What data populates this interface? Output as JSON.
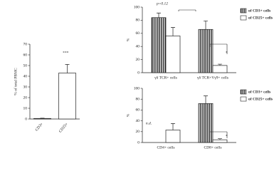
{
  "chart_data": [
    {
      "type": "bar",
      "ylabel": "% of total PBMC",
      "categories": [
        "CD3+",
        "CD25+"
      ],
      "series": [
        {
          "values": [
            0.5,
            43
          ],
          "errors": [
            0.3,
            8
          ],
          "color": "#ffffff"
        }
      ],
      "ylim": [
        0,
        70
      ],
      "yticks": [
        0,
        10,
        20,
        30,
        40,
        50,
        60,
        70
      ],
      "annotations": [
        "***"
      ]
    },
    {
      "type": "bar",
      "ylabel": "%",
      "categories": [
        "γδ TCR+ cells",
        "γδ TCR+Vγ9+ cells"
      ],
      "series": [
        {
          "name": "of CD3+ cells",
          "values": [
            84,
            66
          ],
          "errors": [
            7,
            13
          ],
          "color": "#ffffff",
          "hatch": "vertical"
        },
        {
          "name": "of CD25+ cells",
          "values": [
            56,
            11
          ],
          "errors": [
            13,
            2
          ],
          "color": "#ffffff"
        }
      ],
      "ylim": [
        0,
        100
      ],
      "yticks": [
        0,
        20,
        40,
        60,
        80,
        100
      ],
      "annotations": [
        "p=0.12",
        "*"
      ],
      "legend": "right"
    },
    {
      "type": "bar",
      "ylabel": "%",
      "categories": [
        "CD4+ cells",
        "CD8+ cells"
      ],
      "series": [
        {
          "name": "of CD3+ cells",
          "values": [
            null,
            72
          ],
          "errors": [
            null,
            14
          ],
          "color": "#ffffff",
          "hatch": "vertical"
        },
        {
          "name": "of CD25+ cells",
          "values": [
            23,
            5
          ],
          "errors": [
            12,
            2
          ],
          "color": "#ffffff"
        }
      ],
      "ylim": [
        0,
        100
      ],
      "yticks": [
        0,
        20,
        40,
        60,
        80,
        100
      ],
      "annotations": [
        "n.d.",
        "*"
      ],
      "legend": "right"
    }
  ]
}
